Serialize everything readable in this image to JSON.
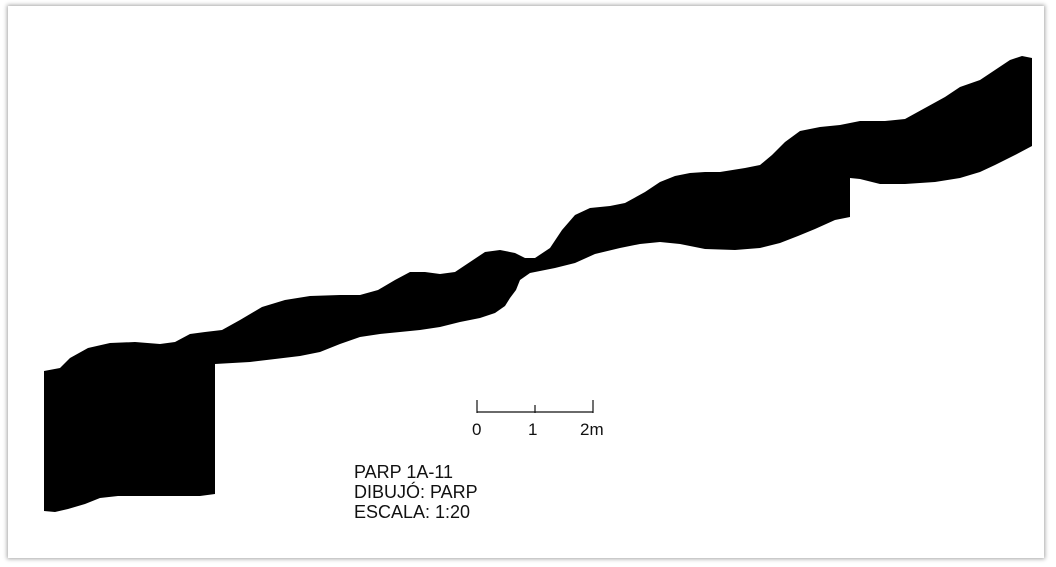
{
  "drawing": {
    "fill_color": "#000000",
    "background": "#ffffff"
  },
  "scale_bar": {
    "labels": [
      "0",
      "1",
      "2m"
    ]
  },
  "info": {
    "line1": "PARP 1A-11",
    "line2": "DIBUJÓ: PARP",
    "line3": "ESCALA: 1:20"
  }
}
